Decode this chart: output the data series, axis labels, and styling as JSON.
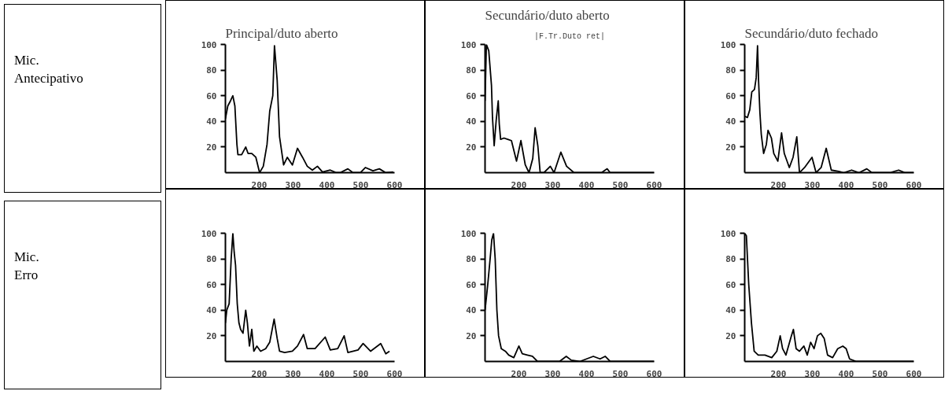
{
  "chart_data": [
    {
      "type": "line",
      "title": "Principal/duto aberto",
      "ylabel": "Mic.\nAntecipativo",
      "color": "#000000",
      "xlim": [
        100,
        600
      ],
      "ylim": [
        0,
        100
      ],
      "xticks": [
        200,
        300,
        400,
        500,
        600
      ],
      "yticks": [
        20,
        40,
        60,
        80,
        100
      ],
      "grid": false,
      "x": [
        100,
        107,
        115,
        122,
        128,
        134,
        137,
        148,
        160,
        167,
        178,
        190,
        201,
        212,
        223,
        231,
        240,
        245,
        253,
        260,
        272,
        283,
        298,
        313,
        328,
        342,
        357,
        372,
        387,
        410,
        428,
        439,
        462,
        477,
        499,
        514,
        536,
        555,
        574,
        596
      ],
      "values": [
        42,
        52,
        56,
        60,
        52,
        22,
        14,
        14,
        20,
        15,
        15,
        12,
        0,
        5,
        22,
        48,
        60,
        99,
        72,
        28,
        6,
        12,
        6,
        19,
        12,
        5,
        2,
        5,
        0.5,
        2,
        0,
        0,
        3,
        0,
        0,
        4,
        1.5,
        3,
        0,
        0.5
      ]
    },
    {
      "type": "line",
      "title": "Secundário/duto aberto",
      "subtitle": "|F.Tr.Duto ret|",
      "color": "#000000",
      "xlim": [
        100,
        600
      ],
      "ylim": [
        0,
        100
      ],
      "xticks": [
        200,
        300,
        400,
        500,
        600
      ],
      "yticks": [
        20,
        40,
        60,
        80,
        100
      ],
      "grid": false,
      "x": [
        100,
        104,
        111,
        119,
        122,
        127,
        133,
        139,
        142,
        146,
        156,
        167,
        178,
        193,
        206,
        219,
        230,
        241,
        248,
        256,
        263,
        274,
        293,
        304,
        324,
        341,
        363,
        393,
        422,
        444,
        461,
        470,
        511,
        559,
        600
      ],
      "values": [
        56,
        100,
        95,
        68,
        43,
        21,
        41,
        56,
        38,
        26,
        27,
        26,
        25,
        9,
        25,
        6,
        0,
        11,
        35,
        21,
        0,
        0,
        5,
        0,
        16,
        5,
        0,
        0,
        0,
        0,
        3,
        0,
        0,
        0,
        0
      ]
    },
    {
      "type": "line",
      "title": "Secundário/duto fechado",
      "color": "#000000",
      "xlim": [
        100,
        600
      ],
      "ylim": [
        0,
        100
      ],
      "xticks": [
        200,
        300,
        400,
        500,
        600
      ],
      "yticks": [
        20,
        40,
        60,
        80,
        100
      ],
      "grid": false,
      "x": [
        100,
        108,
        115,
        121,
        129,
        134,
        138,
        141,
        145,
        149,
        156,
        164,
        169,
        179,
        186,
        198,
        209,
        217,
        232,
        243,
        254,
        262,
        277,
        299,
        311,
        326,
        341,
        356,
        378,
        393,
        416,
        438,
        461,
        476,
        529,
        555,
        574,
        600
      ],
      "values": [
        44,
        43,
        49,
        63,
        65,
        74,
        99,
        72,
        47,
        30,
        15,
        22,
        33,
        27,
        15,
        9,
        31,
        15,
        4,
        12,
        28,
        0,
        4,
        12,
        0,
        4,
        19,
        2,
        1,
        0,
        2,
        0,
        3,
        0,
        0,
        2,
        0,
        0
      ]
    },
    {
      "type": "line",
      "ylabel": "Mic.\nErro",
      "color": "#000000",
      "xlim": [
        100,
        600
      ],
      "ylim": [
        0,
        100
      ],
      "xticks": [
        200,
        300,
        400,
        500,
        600
      ],
      "yticks": [
        20,
        40,
        60,
        80,
        100
      ],
      "grid": false,
      "x": [
        100,
        104,
        111,
        117,
        122,
        126,
        130,
        135,
        140,
        145,
        152,
        160,
        165,
        171,
        178,
        184,
        193,
        204,
        219,
        231,
        244,
        253,
        260,
        275,
        298,
        313,
        331,
        342,
        365,
        395,
        410,
        432,
        451,
        462,
        492,
        507,
        529,
        559,
        574,
        585
      ],
      "values": [
        30,
        40,
        45,
        80,
        100,
        85,
        75,
        45,
        30,
        25,
        22,
        40,
        30,
        12,
        25,
        8,
        12,
        8,
        10,
        15,
        33,
        18,
        8,
        7,
        8,
        12,
        21,
        10,
        10,
        19,
        9,
        10,
        20,
        7,
        9,
        14,
        8,
        14,
        6,
        8
      ]
    },
    {
      "type": "line",
      "color": "#000000",
      "xlim": [
        100,
        600
      ],
      "ylim": [
        0,
        100
      ],
      "xticks": [
        200,
        300,
        400,
        500,
        600
      ],
      "yticks": [
        20,
        40,
        60,
        80,
        100
      ],
      "grid": false,
      "x": [
        100,
        108,
        115,
        120,
        125,
        130,
        135,
        140,
        148,
        160,
        170,
        185,
        200,
        210,
        225,
        240,
        255,
        280,
        300,
        320,
        340,
        355,
        380,
        400,
        420,
        440,
        455,
        470,
        500,
        550,
        600
      ],
      "values": [
        40,
        60,
        80,
        95,
        100,
        80,
        40,
        20,
        10,
        8,
        5,
        3,
        12,
        6,
        5,
        4,
        0,
        0,
        0,
        0,
        4,
        1,
        0,
        2,
        4,
        2,
        4,
        0,
        0,
        0,
        0
      ]
    },
    {
      "type": "line",
      "color": "#000000",
      "xlim": [
        100,
        600
      ],
      "ylim": [
        0,
        100
      ],
      "xticks": [
        200,
        300,
        400,
        500,
        600
      ],
      "yticks": [
        20,
        40,
        60,
        80,
        100
      ],
      "grid": false,
      "x": [
        100,
        105,
        112,
        120,
        128,
        140,
        160,
        180,
        195,
        205,
        212,
        222,
        238,
        244,
        252,
        262,
        275,
        285,
        295,
        305,
        315,
        325,
        335,
        345,
        360,
        375,
        390,
        400,
        410,
        430,
        470,
        520,
        560,
        600
      ],
      "values": [
        100,
        98,
        60,
        30,
        8,
        5,
        5,
        3,
        8,
        20,
        10,
        5,
        20,
        25,
        10,
        8,
        12,
        5,
        15,
        10,
        20,
        22,
        18,
        5,
        3,
        10,
        12,
        10,
        2,
        0,
        0,
        0,
        0,
        0
      ]
    }
  ]
}
